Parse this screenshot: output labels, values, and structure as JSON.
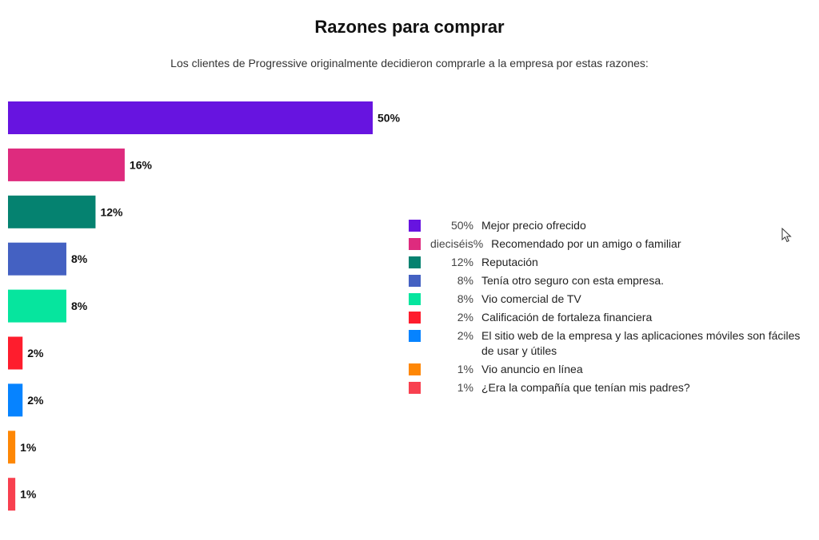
{
  "chart_data": {
    "type": "bar",
    "orientation": "horizontal",
    "title": "Razones para comprar",
    "subtitle": "Los clientes de Progressive originalmente decidieron comprarle a la empresa por estas razones:",
    "categories": [
      "Mejor precio ofrecido",
      "Recomendado por un amigo o familiar",
      "Reputación",
      "Tenía otro seguro con esta empresa.",
      "Vio comercial de TV",
      "Calificación de fortaleza financiera",
      "El sitio web de la empresa y las aplicaciones móviles son fáciles de usar y útiles",
      "Vio anuncio en línea",
      "¿Era la compañía que tenían mis padres?"
    ],
    "values": [
      50,
      16,
      12,
      8,
      8,
      2,
      2,
      1,
      1
    ],
    "bar_labels": [
      "50%",
      "16%",
      "12%",
      "8%",
      "8%",
      "2%",
      "2%",
      "1%",
      "1%"
    ],
    "colors": [
      "#6714e0",
      "#de2b7e",
      "#058270",
      "#4461c2",
      "#06e59e",
      "#fe1d2d",
      "#0683ff",
      "#fe8705",
      "#f8404f"
    ],
    "legend": {
      "placement": "right",
      "items": [
        {
          "pct": "50%",
          "label": "Mejor precio ofrecido"
        },
        {
          "pct": "dieciséis%",
          "label": "Recomendado por un amigo o familiar"
        },
        {
          "pct": "12%",
          "label": "Reputación"
        },
        {
          "pct": "8%",
          "label": "Tenía otro seguro con esta empresa."
        },
        {
          "pct": "8%",
          "label": "Vio comercial de TV"
        },
        {
          "pct": "2%",
          "label": "Calificación de fortaleza financiera"
        },
        {
          "pct": "2%",
          "label": "El sitio web de la empresa y las aplicaciones móviles son fáciles de usar y útiles"
        },
        {
          "pct": "1%",
          "label": "Vio anuncio en línea"
        },
        {
          "pct": "1%",
          "label": "¿Era la compañía que tenían mis padres?"
        }
      ]
    },
    "grid": false
  }
}
